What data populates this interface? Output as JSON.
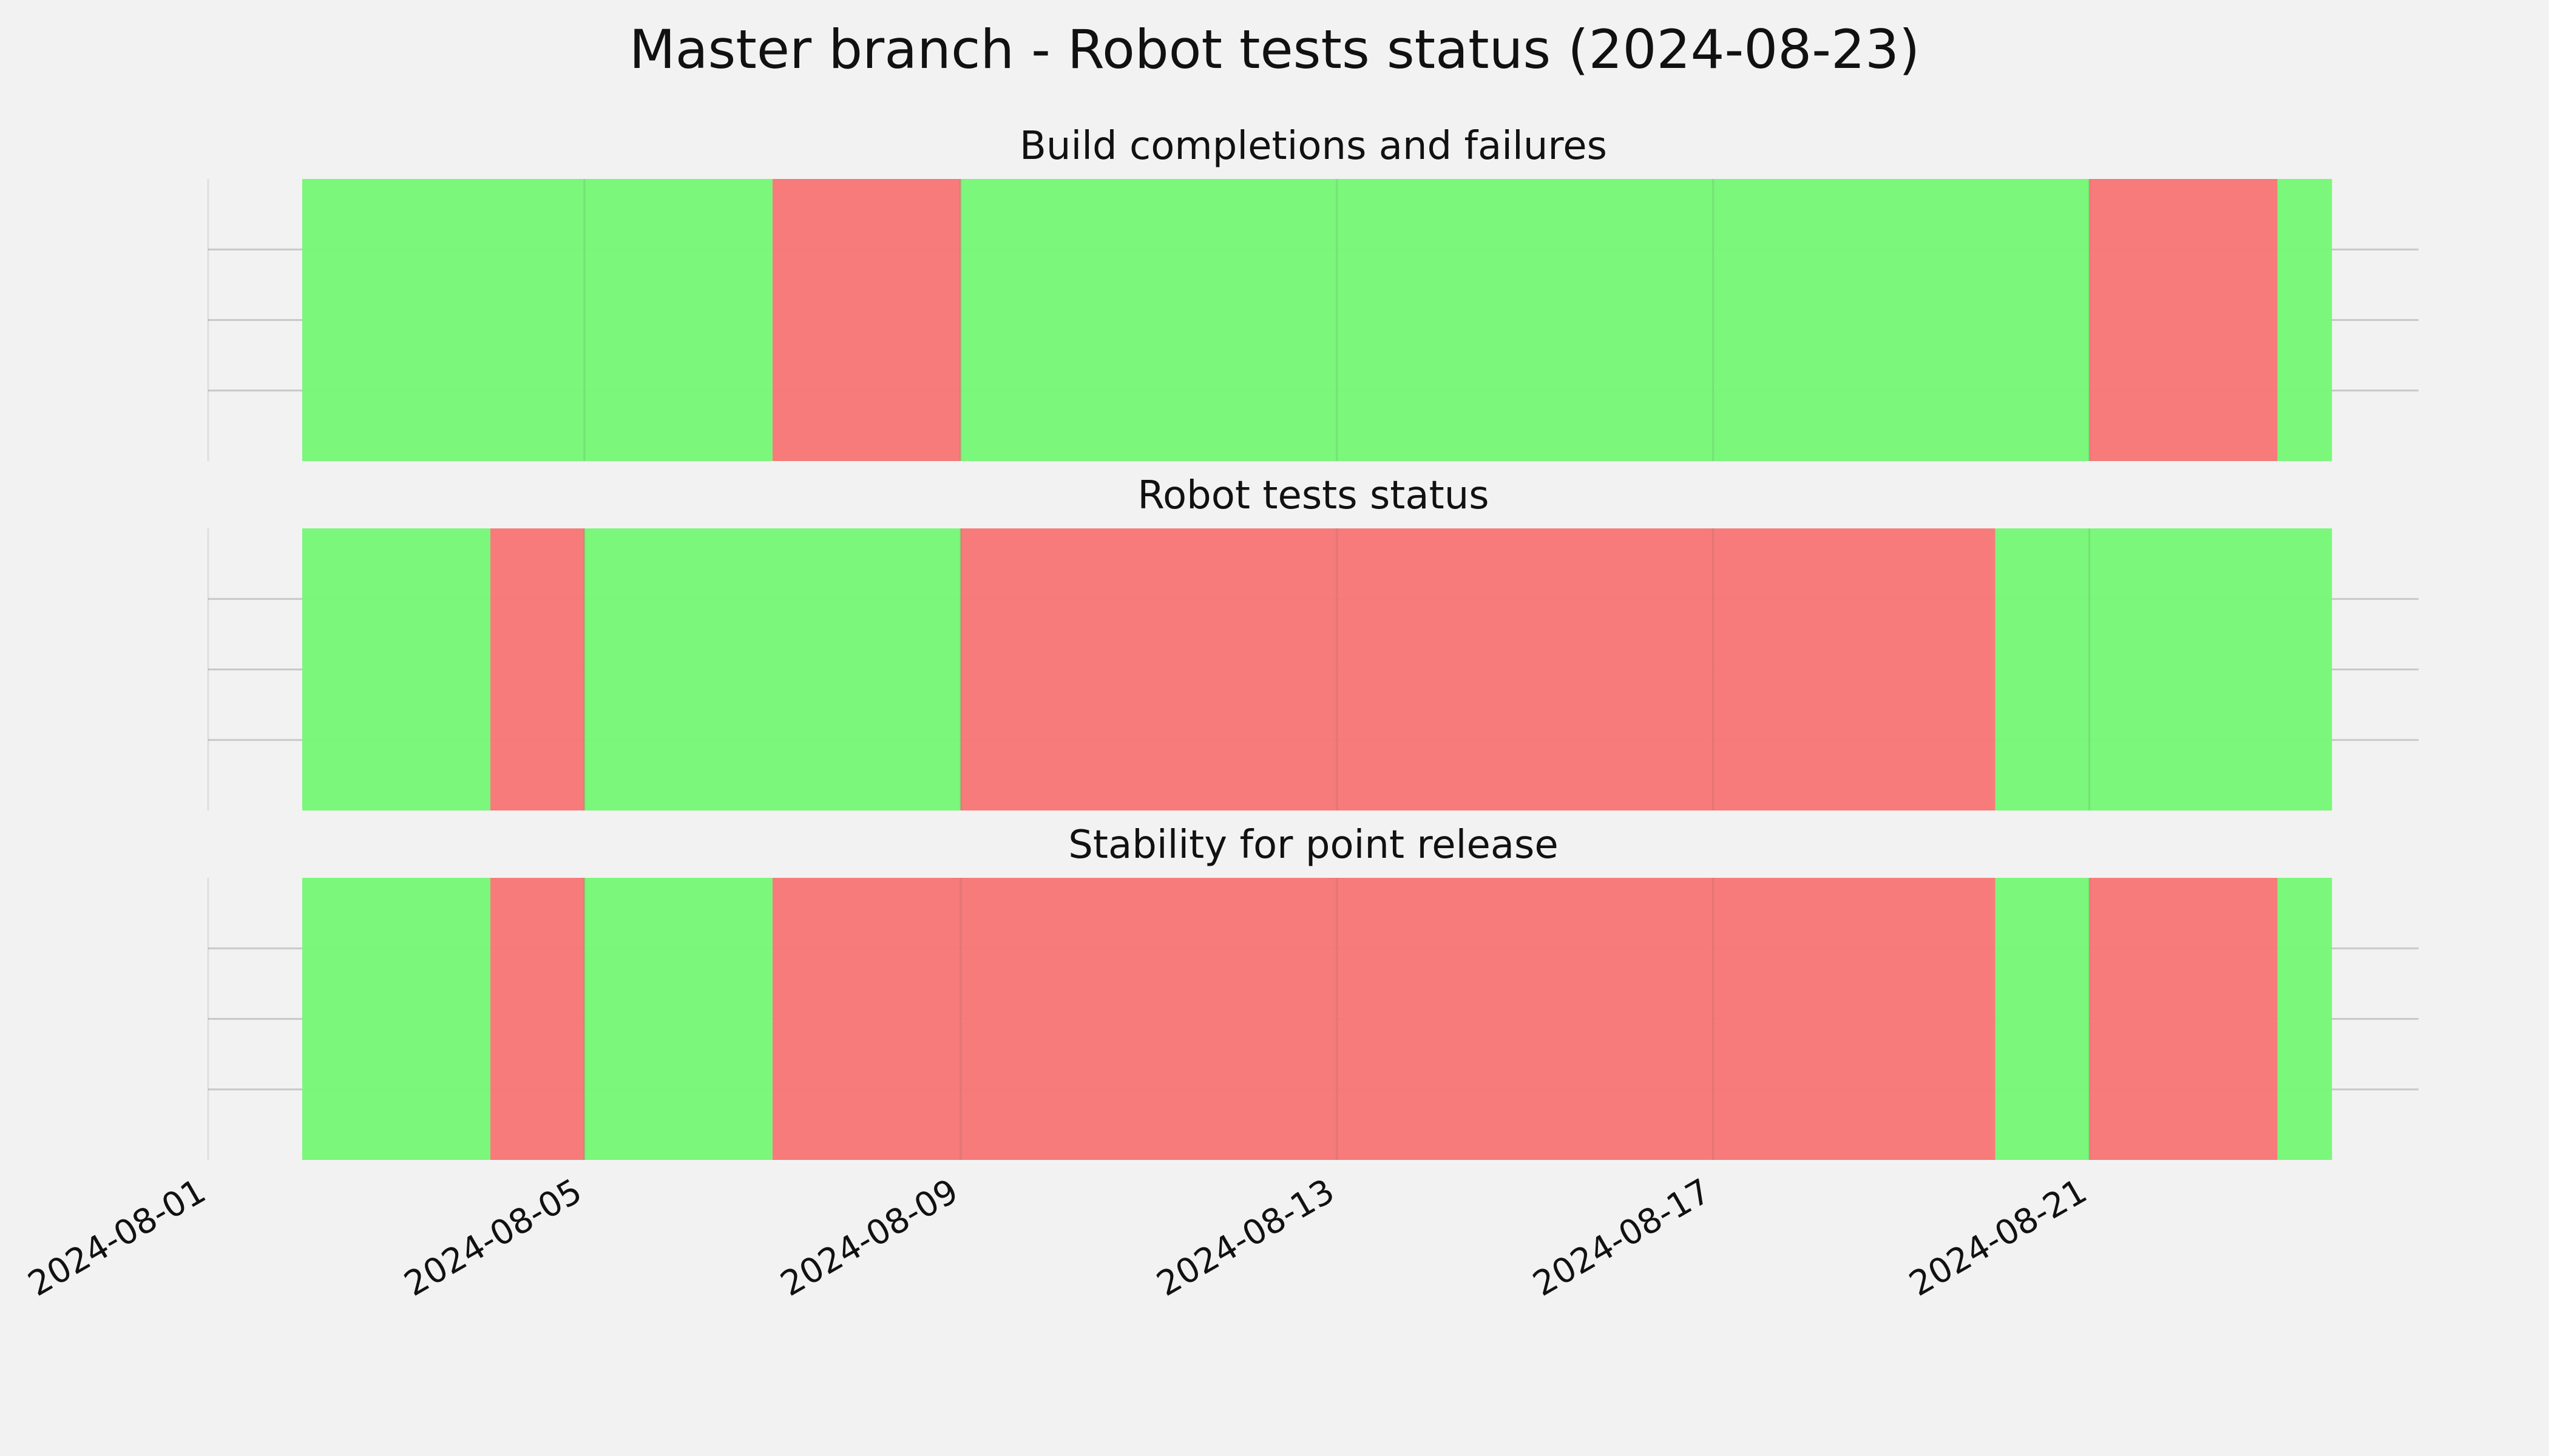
{
  "chart_data": {
    "type": "timeline",
    "title": "Master branch - Robot tests status (2024-08-23)",
    "x_axis": {
      "type": "date",
      "range": [
        "2024-08-01",
        "2024-08-24.5"
      ],
      "ticks": [
        "2024-08-01",
        "2024-08-05",
        "2024-08-09",
        "2024-08-13",
        "2024-08-17",
        "2024-08-21"
      ],
      "tick_label_rotation_deg": 30
    },
    "y_axis": {
      "tick_labels": [],
      "grid_lines": 3
    },
    "grid": true,
    "colors": {
      "pass": "#77f777",
      "fail": "#f77777",
      "background": "#f2f2f2"
    },
    "panels": [
      {
        "title": "Build completions and failures",
        "segments": [
          {
            "start": "2024-08-02",
            "end": "2024-08-05",
            "status": "pass"
          },
          {
            "start": "2024-08-05",
            "end": "2024-08-07",
            "status": "pass"
          },
          {
            "start": "2024-08-07",
            "end": "2024-08-09",
            "status": "fail"
          },
          {
            "start": "2024-08-09",
            "end": "2024-08-13",
            "status": "pass"
          },
          {
            "start": "2024-08-13",
            "end": "2024-08-17",
            "status": "pass"
          },
          {
            "start": "2024-08-17",
            "end": "2024-08-21",
            "status": "pass"
          },
          {
            "start": "2024-08-21",
            "end": "2024-08-23",
            "status": "fail"
          },
          {
            "start": "2024-08-23",
            "end": "2024-08-23.58",
            "status": "pass"
          }
        ]
      },
      {
        "title": "Robot tests status",
        "segments": [
          {
            "start": "2024-08-02",
            "end": "2024-08-04",
            "status": "pass"
          },
          {
            "start": "2024-08-04",
            "end": "2024-08-05",
            "status": "fail"
          },
          {
            "start": "2024-08-05",
            "end": "2024-08-09",
            "status": "pass"
          },
          {
            "start": "2024-08-09",
            "end": "2024-08-13",
            "status": "fail"
          },
          {
            "start": "2024-08-13",
            "end": "2024-08-17",
            "status": "fail"
          },
          {
            "start": "2024-08-17",
            "end": "2024-08-20",
            "status": "fail"
          },
          {
            "start": "2024-08-20",
            "end": "2024-08-21",
            "status": "pass"
          },
          {
            "start": "2024-08-21",
            "end": "2024-08-23.58",
            "status": "pass"
          }
        ]
      },
      {
        "title": "Stability for point release",
        "segments": [
          {
            "start": "2024-08-02",
            "end": "2024-08-04",
            "status": "pass"
          },
          {
            "start": "2024-08-04",
            "end": "2024-08-05",
            "status": "fail"
          },
          {
            "start": "2024-08-05",
            "end": "2024-08-07",
            "status": "pass"
          },
          {
            "start": "2024-08-07",
            "end": "2024-08-09",
            "status": "fail"
          },
          {
            "start": "2024-08-09",
            "end": "2024-08-13",
            "status": "fail"
          },
          {
            "start": "2024-08-13",
            "end": "2024-08-17",
            "status": "fail"
          },
          {
            "start": "2024-08-17",
            "end": "2024-08-20",
            "status": "fail"
          },
          {
            "start": "2024-08-20",
            "end": "2024-08-21",
            "status": "pass"
          },
          {
            "start": "2024-08-21",
            "end": "2024-08-23",
            "status": "fail"
          },
          {
            "start": "2024-08-23",
            "end": "2024-08-23.58",
            "status": "pass"
          }
        ]
      }
    ]
  }
}
